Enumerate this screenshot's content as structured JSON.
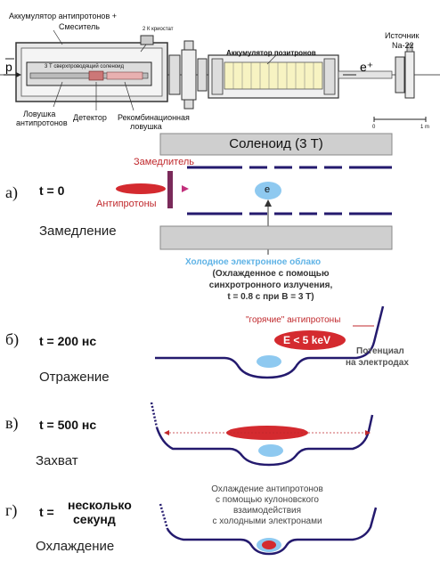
{
  "apparatus": {
    "accumulator_title_line1": "Аккумулятор антипротонов +",
    "accumulator_title_line2": "Смеситель",
    "cryostat_label": "2 К криостат",
    "solenoid_inner_label": "3 Т сверхпроводящий соленоид",
    "positron_accumulator_label": "Аккумулятор позитронов",
    "source_line1": "Источник",
    "source_line2": "Na-22",
    "pbar_label": "p",
    "eplus_label": "e⁺",
    "trap_line1": "Ловушка",
    "trap_line2": "антипротонов",
    "detector_label": "Детектор",
    "recomb_line1": "Рекомбинационная",
    "recomb_line2": "ловушка",
    "scale_zero": "0",
    "scale_one": "1 m"
  },
  "stage_a": {
    "solenoid_label": "Соленоид (3 Т)",
    "decelerator_label": "Замедлитель",
    "step_label": "а)",
    "time_label": "t  =  0",
    "antiprotons_label": "Антипротоны",
    "electron_symbol": "e",
    "phase_label": "Замедление",
    "cloud_title": "Холодное электронное облако",
    "cloud_line1": "(Охлажденное с помощью",
    "cloud_line2": "синхротронного излучения,",
    "cloud_line3": "t = 0.8 с при B = 3 Т)"
  },
  "stage_b": {
    "step_label": "б)",
    "time_label": "t  =  200  нс",
    "hot_label": "\"горячие\" антипротоны",
    "energy_label": "E  <  5  keV",
    "potential_line1": "Потенциал",
    "potential_line2": "на электродах",
    "phase_label": "Отражение"
  },
  "stage_c": {
    "step_label": "в)",
    "time_label": "t  =  500  нс",
    "phase_label": "Захват"
  },
  "stage_d": {
    "step_label": "г)",
    "time_prefix": "t  =",
    "time_line1": "несколько",
    "time_line2": "секунд",
    "cool_line1": "Охлаждение антипротонов",
    "cool_line2": "с помощью кулоновского",
    "cool_line3": "взаимодействия",
    "cool_line4": "с холодными электронами",
    "phase_label": "Охлаждение"
  },
  "colors": {
    "electrode": "#241a6e",
    "antiproton": "#d42a2f",
    "electron_cloud": "#8ec9f0",
    "solenoid": "#cfcfcf",
    "decelerator": "#7a2a5a"
  }
}
